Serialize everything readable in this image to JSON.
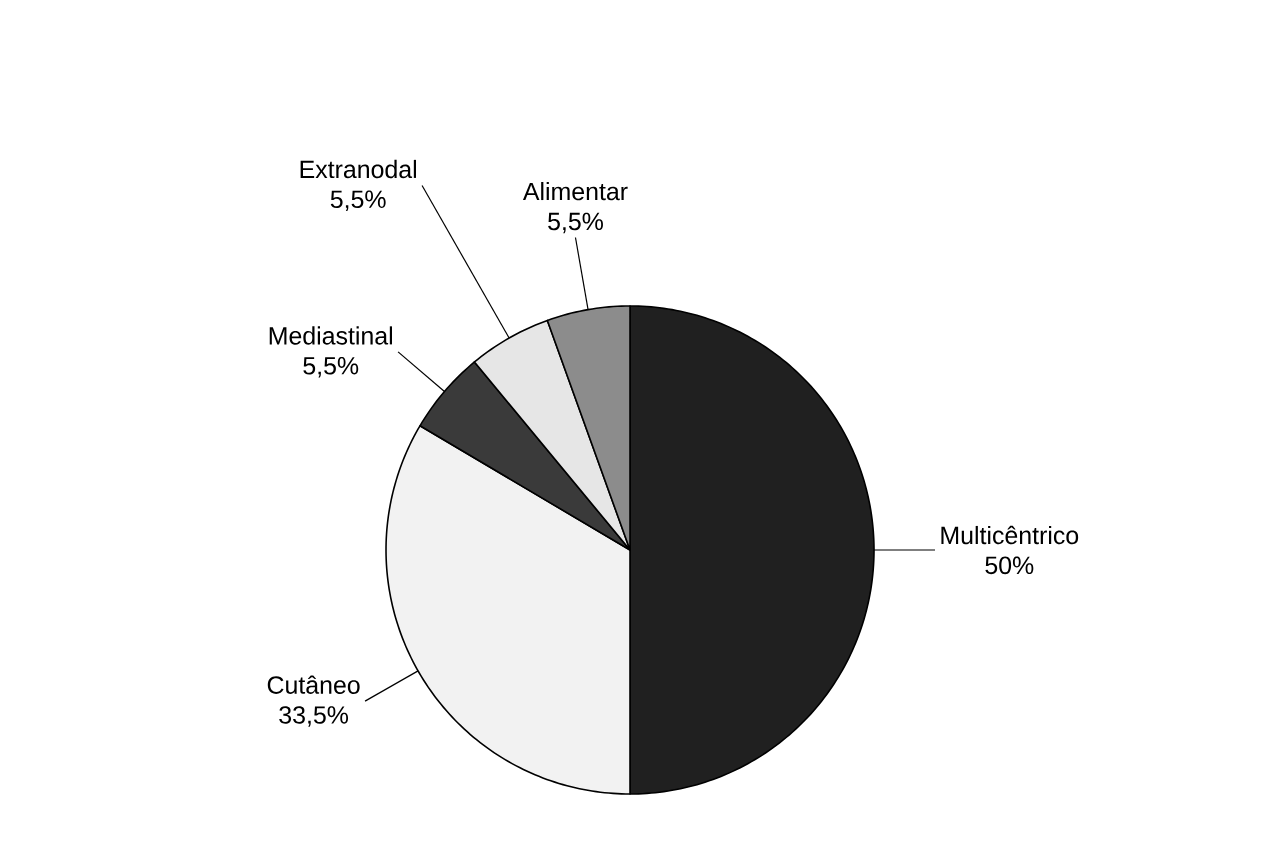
{
  "chart_data": {
    "type": "pie",
    "categories": [
      "Multicêntrico",
      "Cutâneo",
      "Mediastinal",
      "Extranodal",
      "Alimentar"
    ],
    "values": [
      50,
      33.5,
      5.5,
      5.5,
      5.5
    ],
    "value_labels": [
      "50%",
      "33,5%",
      "5,5%",
      "5,5%",
      "5,5%"
    ],
    "colors": [
      "#202020",
      "#f2f2f2",
      "#3a3a3a",
      "#e6e6e6",
      "#8c8c8c"
    ]
  }
}
